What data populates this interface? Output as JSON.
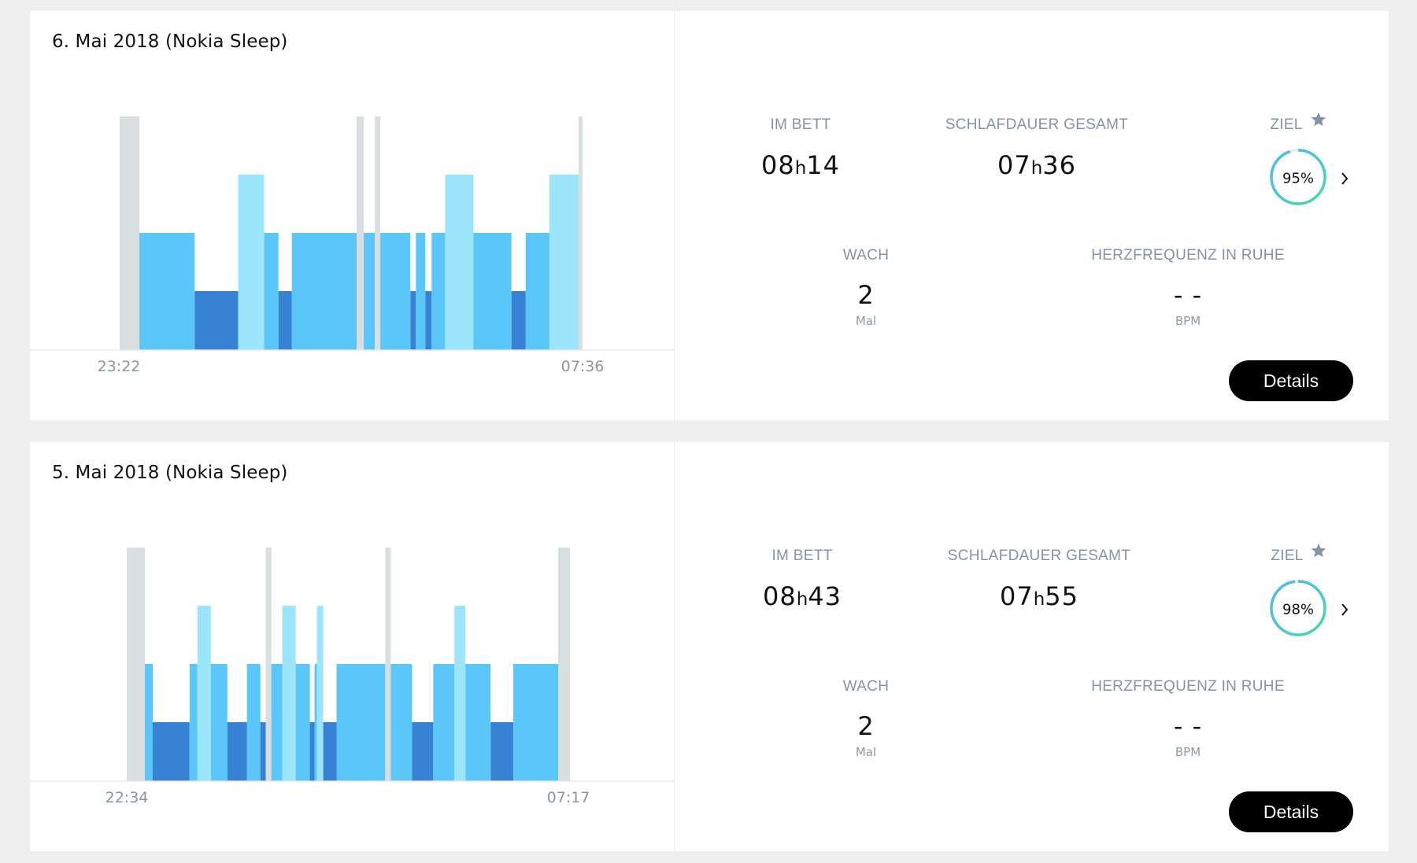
{
  "colors": {
    "awake": "#d9dfe1",
    "light": "#5bc6f8",
    "deep": "#3782d2",
    "rem": "#9be6fb",
    "goal_gradient_start": "#47d9a3",
    "goal_gradient_end": "#4fb7f2",
    "button_bg": "#000000",
    "label_gray": "#8493a1"
  },
  "nights": [
    {
      "title": "6. Mai 2018 (Nokia Sleep)",
      "start_time": "23:22",
      "end_time": "07:36",
      "stages": [
        [
          "awake",
          0,
          25
        ],
        [
          "light",
          25,
          95
        ],
        [
          "deep",
          95,
          150
        ],
        [
          "rem",
          150,
          183
        ],
        [
          "light",
          183,
          201
        ],
        [
          "deep",
          201,
          218
        ],
        [
          "light",
          218,
          300
        ],
        [
          "awake",
          300,
          309
        ],
        [
          "light",
          309,
          323
        ],
        [
          "awake",
          323,
          330
        ],
        [
          "light",
          330,
          368
        ],
        [
          "deep",
          368,
          375
        ],
        [
          "light",
          375,
          387
        ],
        [
          "deep",
          387,
          395
        ],
        [
          "light",
          395,
          412
        ],
        [
          "rem",
          412,
          448
        ],
        [
          "light",
          448,
          496
        ],
        [
          "deep",
          496,
          514
        ],
        [
          "light",
          514,
          544
        ],
        [
          "rem",
          544,
          581
        ],
        [
          "awake",
          581,
          586
        ]
      ],
      "stats": {
        "in_bed_label": "IM BETT",
        "in_bed_h": "08",
        "in_bed_m": "14",
        "total_label": "SCHLAFDAUER GESAMT",
        "total_h": "07",
        "total_m": "36",
        "goal_label": "ZIEL",
        "goal_pct": 95,
        "goal_pct_text": "95%",
        "awake_label": "WACH",
        "awake_count": "2",
        "awake_unit": "Mal",
        "hr_label": "HERZFREQUENZ IN RUHE",
        "hr_value": "- -",
        "hr_unit": "BPM",
        "hour_sep": "h",
        "details_label": "Details"
      }
    },
    {
      "title": "5. Mai 2018 (Nokia Sleep)",
      "start_time": "22:34",
      "end_time": "07:17",
      "stages": [
        [
          "awake",
          0,
          23
        ],
        [
          "light",
          23,
          33
        ],
        [
          "deep",
          33,
          80
        ],
        [
          "light",
          80,
          90
        ],
        [
          "rem",
          90,
          107
        ],
        [
          "light",
          107,
          128
        ],
        [
          "deep",
          128,
          153
        ],
        [
          "light",
          153,
          170
        ],
        [
          "deep",
          170,
          177
        ],
        [
          "awake",
          177,
          184
        ],
        [
          "light",
          184,
          198
        ],
        [
          "rem",
          198,
          215
        ],
        [
          "light",
          215,
          233
        ],
        [
          "deep",
          233,
          239
        ],
        [
          "light",
          239,
          242
        ],
        [
          "rem",
          242,
          250
        ],
        [
          "deep",
          250,
          267
        ],
        [
          "light",
          267,
          329
        ],
        [
          "awake",
          329,
          336
        ],
        [
          "light",
          336,
          363
        ],
        [
          "deep",
          363,
          390
        ],
        [
          "light",
          390,
          417
        ],
        [
          "rem",
          417,
          431
        ],
        [
          "light",
          431,
          463
        ],
        [
          "deep",
          463,
          492
        ],
        [
          "light",
          492,
          549
        ],
        [
          "awake",
          549,
          564
        ]
      ],
      "stats": {
        "in_bed_label": "IM BETT",
        "in_bed_h": "08",
        "in_bed_m": "43",
        "total_label": "SCHLAFDAUER GESAMT",
        "total_h": "07",
        "total_m": "55",
        "goal_label": "ZIEL",
        "goal_pct": 98,
        "goal_pct_text": "98%",
        "awake_label": "WACH",
        "awake_count": "2",
        "awake_unit": "Mal",
        "hr_label": "HERZFREQUENZ IN RUHE",
        "hr_value": "- -",
        "hr_unit": "BPM",
        "hour_sep": "h",
        "details_label": "Details"
      }
    }
  ]
}
